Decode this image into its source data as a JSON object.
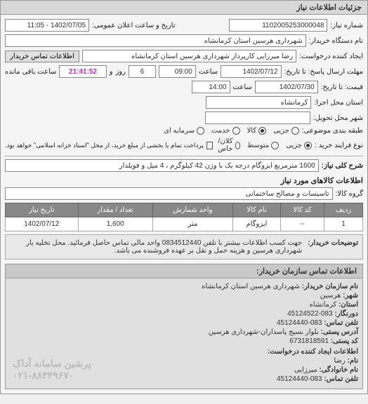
{
  "panel_title": "جزئیات اطلاعات نیاز",
  "labels": {
    "number": "شماره نیاز:",
    "announce_datetime": "تاریخ و ساعت اعلان عمومی:",
    "buyer_org": "نام دستگاه خریدار:",
    "requester": "ایجاد کننده درخواست:",
    "contact_btn": "اطلاعات تماس خریدار",
    "response_deadline": "مهلت ارسال پاسخ: تا تاریخ:",
    "time": "ساعت",
    "and": "و",
    "day": "روز",
    "remaining": "ساعت باقی مانده",
    "price_validity": "قیمت: تا تاریخ:",
    "exec_province": "استان محل اجرا:",
    "delivery_city": "شهر محل تحویل:",
    "categorization": "طبقه بندی موضوعی:",
    "purchase_type": "نوع فرایند خرید :",
    "payment_note": "پرداخت تمام یا بخشی از مبلغ خرید، از محل \"اسناد خزانه اسلامی\" خواهد بود.",
    "title": "شرح کلی نیاز:",
    "goods_info_title": "اطلاعات کالاهای مورد نیاز",
    "goods_group": "گروه کالا:",
    "desc_label": "توضیحات خریدار:"
  },
  "fields": {
    "number": "1102005253000048",
    "announce_datetime": "1402/07/05 - 11:05",
    "buyer_org": "شهرداری هرسین استان کرمانشاه",
    "requester": "رضا میرزایی کارپرداز شهرداری هرسین استان کرمانشاه",
    "response_date": "1402/07/12",
    "response_time": "09:00",
    "days_remaining": "6",
    "countdown": "21:41:52",
    "price_date": "1402/07/30",
    "price_time": "14:00",
    "exec_province": "کرمانشاه",
    "delivery_city": "",
    "title": "1600 مترمربع ایزوگام درجه یک با وزن 42 کیلوگرم ، 4 میل و فویلدار",
    "goods_group": "تاسیسات و مصالح ساختمانی",
    "description": "جهت کسب اطلاعات بیشتر با تلفن 0834512440 واحد مالی تماس حاصل فرمائید. محل تخلیه بار شهرداری هرسین و هزینه حمل و نقل بر عهده فروشنده می باشد."
  },
  "radios_category": {
    "options": [
      "جزیی",
      "کالا",
      "خدمت",
      "سرمایه ای"
    ],
    "selected": 1
  },
  "radios_process": {
    "options": [
      "جزیی",
      "متوسط",
      "کلان/خاص"
    ],
    "selected": 0
  },
  "table": {
    "headers": [
      "ردیف",
      "کد کالا",
      "نام کالا",
      "واحد شمارش",
      "تعداد / مقدار",
      "تاریخ نیاز"
    ],
    "row": [
      "1",
      "--",
      "ایزوگام",
      "متر",
      "1,600",
      "1402/07/12"
    ]
  },
  "contact": {
    "header": "اطلاعات تماس سازمان خریدار:",
    "lines": [
      {
        "k": "نام سازمان خریدار:",
        "v": "شهرداری هرسین استان کرمانشاه"
      },
      {
        "k": "شهر:",
        "v": "هرسین"
      },
      {
        "k": "استان:",
        "v": "کرمانشاه"
      },
      {
        "k": "دورنگار:",
        "v": "083-45124522"
      },
      {
        "k": "تلفن تماس:",
        "v": "083-45124440"
      },
      {
        "k": "آدرس پستی:",
        "v": "بلوار بسیج پاسداران-شهرداری هرسین"
      },
      {
        "k": "کد پستی:",
        "v": "6731818591"
      }
    ],
    "subheader": "اطلاعات ایجاد کننده درخواست:",
    "sublines": [
      {
        "k": "نام:",
        "v": "رضا"
      },
      {
        "k": "نام خانوادگی:",
        "v": "میرزایی"
      },
      {
        "k": "تلفن تماس:",
        "v": "083-45124440"
      }
    ]
  },
  "watermark": {
    "line1": "پرشین سامانه آداک",
    "line2": "۰۲۱-۸۸۳۴۹۶۷۰"
  }
}
